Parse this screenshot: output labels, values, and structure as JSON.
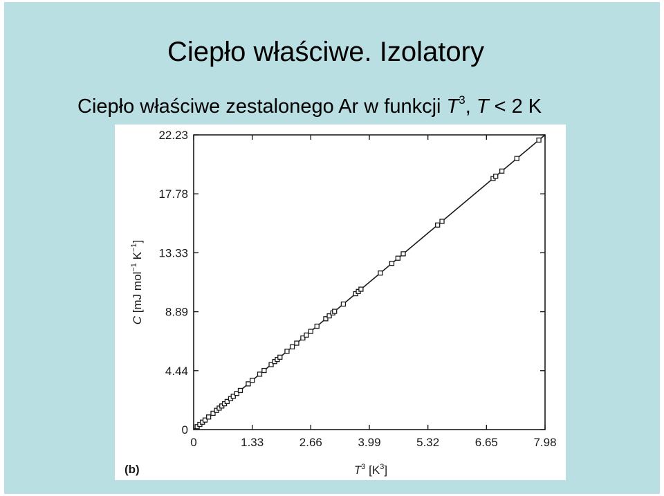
{
  "slide": {
    "title": "Ciepło właściwe. Izolatory",
    "subtitle_prefix": "Ciepło właściwe zestalonego Ar w funkcji ",
    "subtitle_var_T": "T",
    "subtitle_exp": "3",
    "subtitle_sep": ", ",
    "subtitle_var_T2": "T",
    "subtitle_suffix": " < 2 K",
    "background_color": "#b9dfe3"
  },
  "chart_data": {
    "type": "scatter",
    "panel_label": "(b)",
    "xlabel": "T^3 [K^3]",
    "ylabel": "C [mJ mol^-1 K^-1]",
    "xlim": [
      0,
      7.98
    ],
    "ylim": [
      0,
      22.23
    ],
    "x_ticks": [
      "0",
      "1.33",
      "2.66",
      "3.99",
      "5.32",
      "6.65",
      "7.98"
    ],
    "y_ticks": [
      "0",
      "4.44",
      "8.89",
      "13.33",
      "17.78",
      "22.23"
    ],
    "grid": false,
    "marker": "open-square",
    "fit_line": {
      "x": [
        0,
        7.98
      ],
      "y": [
        0,
        22.23
      ]
    },
    "series": [
      {
        "x": [
          0.08,
          0.14,
          0.2,
          0.26,
          0.34,
          0.44,
          0.52,
          0.58,
          0.64,
          0.7,
          0.76,
          0.84,
          0.9,
          0.98,
          1.06,
          1.24,
          1.33,
          1.5,
          1.6,
          1.76,
          1.84,
          1.9,
          1.96,
          2.12,
          2.24,
          2.34,
          2.48,
          2.56,
          2.66,
          2.8,
          3.0,
          3.08,
          3.16,
          3.2,
          3.4,
          3.68,
          3.74,
          3.8,
          4.24,
          4.5,
          4.64,
          4.76,
          5.54,
          5.64,
          6.8,
          6.86,
          7.0,
          7.34,
          7.84
        ],
        "y": [
          0.22,
          0.39,
          0.56,
          0.72,
          0.95,
          1.23,
          1.45,
          1.62,
          1.78,
          1.95,
          2.12,
          2.34,
          2.51,
          2.73,
          2.95,
          3.45,
          3.71,
          4.18,
          4.46,
          4.9,
          5.13,
          5.29,
          5.46,
          5.91,
          6.24,
          6.52,
          6.91,
          7.13,
          7.41,
          7.8,
          8.36,
          8.58,
          8.8,
          8.92,
          9.47,
          10.25,
          10.42,
          10.59,
          11.81,
          12.54,
          12.93,
          13.26,
          15.43,
          15.71,
          18.94,
          19.11,
          19.5,
          20.45,
          21.84
        ]
      }
    ]
  }
}
